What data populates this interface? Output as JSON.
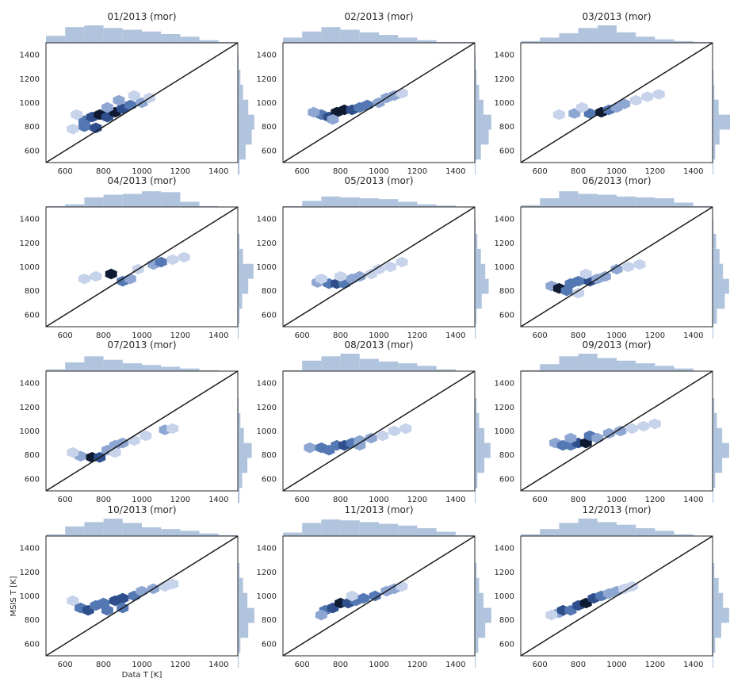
{
  "figure": {
    "xlabel": "Data T [K]",
    "ylabel": "MSIS T [K]"
  },
  "chart_data": {
    "type": "hexbin",
    "x_lim": [
      500,
      1500
    ],
    "y_lim": [
      500,
      1500
    ],
    "x_ticks": [
      600,
      800,
      1000,
      1200,
      1400
    ],
    "y_ticks": [
      600,
      800,
      1000,
      1200,
      1400
    ],
    "reference_line": "y = x",
    "marginal_histograms": "top (x) and right (y)",
    "colors": {
      "hex_scale": [
        "#eef2f9",
        "#c6d3ea",
        "#8ea6d2",
        "#5478b3",
        "#2e4f8c",
        "#0f1a33"
      ],
      "hist": "#b0c4de",
      "line": "#1a1a1a"
    },
    "panels": [
      {
        "title": "01/2013 (mor)",
        "hist_x": [
          0.4,
          0.9,
          1.0,
          0.85,
          0.75,
          0.65,
          0.5,
          0.35,
          0.15,
          0.05
        ],
        "hist_y": [
          0.1,
          0.45,
          0.8,
          0.95,
          0.6,
          0.3,
          0.15,
          0.05
        ],
        "cells": [
          [
            700,
            850,
            3
          ],
          [
            740,
            880,
            4
          ],
          [
            780,
            900,
            5
          ],
          [
            820,
            880,
            4
          ],
          [
            860,
            920,
            5
          ],
          [
            900,
            950,
            4
          ],
          [
            940,
            980,
            3
          ],
          [
            1000,
            1000,
            2
          ],
          [
            700,
            800,
            3
          ],
          [
            760,
            790,
            4
          ],
          [
            820,
            960,
            2
          ],
          [
            880,
            1020,
            2
          ],
          [
            960,
            1060,
            1
          ],
          [
            1040,
            1040,
            1
          ],
          [
            660,
            900,
            1
          ],
          [
            640,
            780,
            1
          ]
        ]
      },
      {
        "title": "02/2013 (mor)",
        "hist_x": [
          0.3,
          0.65,
          0.9,
          0.75,
          0.6,
          0.45,
          0.3,
          0.15,
          0.05,
          0.05
        ],
        "hist_y": [
          0.05,
          0.35,
          0.8,
          0.95,
          0.5,
          0.25,
          0.1,
          0.05
        ],
        "cells": [
          [
            700,
            900,
            3
          ],
          [
            740,
            880,
            4
          ],
          [
            780,
            920,
            5
          ],
          [
            820,
            940,
            5
          ],
          [
            860,
            940,
            4
          ],
          [
            900,
            960,
            3
          ],
          [
            940,
            980,
            3
          ],
          [
            1000,
            1000,
            2
          ],
          [
            1040,
            1040,
            2
          ],
          [
            1080,
            1060,
            2
          ],
          [
            660,
            920,
            2
          ],
          [
            760,
            860,
            2
          ],
          [
            1120,
            1080,
            1
          ]
        ]
      },
      {
        "title": "03/2013 (mor)",
        "hist_x": [
          0.1,
          0.3,
          0.55,
          0.85,
          1.0,
          0.6,
          0.35,
          0.2,
          0.1,
          0.05
        ],
        "hist_y": [
          0.05,
          0.15,
          0.4,
          1.0,
          0.35,
          0.1,
          0.05,
          0.02
        ],
        "cells": [
          [
            700,
            900,
            1
          ],
          [
            780,
            910,
            2
          ],
          [
            860,
            910,
            3
          ],
          [
            920,
            920,
            5
          ],
          [
            960,
            940,
            3
          ],
          [
            1000,
            960,
            2
          ],
          [
            1040,
            990,
            2
          ],
          [
            1100,
            1020,
            1
          ],
          [
            1160,
            1050,
            1
          ],
          [
            1220,
            1070,
            1
          ],
          [
            820,
            960,
            1
          ]
        ]
      },
      {
        "title": "04/2013 (mor)",
        "hist_x": [
          0.05,
          0.15,
          0.55,
          0.7,
          0.75,
          0.9,
          0.85,
          0.3,
          0.05,
          0.02
        ],
        "hist_y": [
          0.05,
          0.1,
          0.25,
          0.6,
          0.9,
          0.3,
          0.1,
          0.02
        ],
        "cells": [
          [
            700,
            900,
            1
          ],
          [
            760,
            920,
            1
          ],
          [
            840,
            940,
            5
          ],
          [
            900,
            880,
            3
          ],
          [
            980,
            980,
            1
          ],
          [
            1060,
            1020,
            2
          ],
          [
            1100,
            1040,
            3
          ],
          [
            1160,
            1060,
            1
          ],
          [
            1220,
            1080,
            1
          ],
          [
            940,
            900,
            2
          ]
        ]
      },
      {
        "title": "05/2013 (mor)",
        "hist_x": [
          0.05,
          0.35,
          0.6,
          0.55,
          0.5,
          0.45,
          0.3,
          0.15,
          0.08,
          0.03
        ],
        "hist_y": [
          0.05,
          0.1,
          0.4,
          0.8,
          0.6,
          0.35,
          0.15,
          0.05
        ],
        "cells": [
          [
            680,
            870,
            2
          ],
          [
            740,
            860,
            3
          ],
          [
            780,
            860,
            4
          ],
          [
            820,
            860,
            3
          ],
          [
            860,
            900,
            2
          ],
          [
            900,
            920,
            2
          ],
          [
            960,
            940,
            1
          ],
          [
            1000,
            980,
            1
          ],
          [
            1060,
            1000,
            1
          ],
          [
            1120,
            1040,
            1
          ],
          [
            800,
            920,
            1
          ],
          [
            700,
            900,
            1
          ]
        ]
      },
      {
        "title": "06/2013 (mor)",
        "hist_x": [
          0.1,
          0.5,
          0.9,
          0.75,
          0.7,
          0.6,
          0.55,
          0.5,
          0.25,
          0.05
        ],
        "hist_y": [
          0.05,
          0.25,
          0.7,
          0.95,
          0.6,
          0.4,
          0.2,
          0.05
        ],
        "cells": [
          [
            660,
            840,
            2
          ],
          [
            700,
            820,
            5
          ],
          [
            740,
            800,
            3
          ],
          [
            760,
            860,
            3
          ],
          [
            800,
            880,
            3
          ],
          [
            860,
            880,
            4
          ],
          [
            900,
            900,
            2
          ],
          [
            940,
            920,
            2
          ],
          [
            1000,
            980,
            2
          ],
          [
            1060,
            1000,
            1
          ],
          [
            1120,
            1020,
            1
          ],
          [
            840,
            940,
            1
          ],
          [
            800,
            780,
            1
          ]
        ]
      },
      {
        "title": "07/2013 (mor)",
        "hist_x": [
          0.1,
          0.5,
          0.85,
          0.65,
          0.45,
          0.35,
          0.25,
          0.15,
          0.05,
          0.02
        ],
        "hist_y": [
          0.1,
          0.25,
          0.55,
          0.8,
          0.35,
          0.15,
          0.05,
          0.02
        ],
        "cells": [
          [
            680,
            790,
            2
          ],
          [
            740,
            780,
            5
          ],
          [
            780,
            780,
            4
          ],
          [
            820,
            840,
            2
          ],
          [
            860,
            880,
            2
          ],
          [
            900,
            900,
            2
          ],
          [
            960,
            920,
            1
          ],
          [
            1020,
            960,
            1
          ],
          [
            1120,
            1010,
            2
          ],
          [
            1160,
            1020,
            1
          ],
          [
            640,
            820,
            1
          ],
          [
            860,
            820,
            1
          ]
        ]
      },
      {
        "title": "08/2013 (mor)",
        "hist_x": [
          0.05,
          0.6,
          0.85,
          1.0,
          0.7,
          0.55,
          0.45,
          0.3,
          0.1,
          0.02
        ],
        "hist_y": [
          0.05,
          0.15,
          0.55,
          0.9,
          0.55,
          0.25,
          0.1,
          0.02
        ],
        "cells": [
          [
            640,
            860,
            2
          ],
          [
            700,
            860,
            3
          ],
          [
            740,
            840,
            3
          ],
          [
            780,
            880,
            3
          ],
          [
            820,
            880,
            4
          ],
          [
            860,
            900,
            3
          ],
          [
            900,
            920,
            2
          ],
          [
            960,
            940,
            2
          ],
          [
            1020,
            960,
            1
          ],
          [
            1080,
            1000,
            1
          ],
          [
            1140,
            1020,
            1
          ],
          [
            900,
            880,
            2
          ]
        ]
      },
      {
        "title": "09/2013 (mor)",
        "hist_x": [
          0.05,
          0.4,
          0.85,
          1.0,
          0.75,
          0.6,
          0.45,
          0.3,
          0.15,
          0.02
        ],
        "hist_y": [
          0.05,
          0.15,
          0.55,
          0.95,
          0.55,
          0.25,
          0.1,
          0.02
        ],
        "cells": [
          [
            680,
            900,
            2
          ],
          [
            720,
            880,
            3
          ],
          [
            760,
            880,
            3
          ],
          [
            800,
            900,
            4
          ],
          [
            840,
            900,
            5
          ],
          [
            860,
            960,
            3
          ],
          [
            900,
            940,
            2
          ],
          [
            960,
            980,
            2
          ],
          [
            1020,
            1000,
            2
          ],
          [
            1080,
            1020,
            1
          ],
          [
            1140,
            1040,
            1
          ],
          [
            1200,
            1060,
            1
          ],
          [
            760,
            940,
            2
          ]
        ]
      },
      {
        "title": "10/2013 (mor)",
        "hist_x": [
          0.1,
          0.55,
          0.8,
          1.0,
          0.75,
          0.5,
          0.4,
          0.3,
          0.15,
          0.05
        ],
        "hist_y": [
          0.05,
          0.15,
          0.6,
          0.95,
          0.55,
          0.3,
          0.1,
          0.02
        ],
        "cells": [
          [
            680,
            900,
            3
          ],
          [
            720,
            880,
            4
          ],
          [
            760,
            920,
            3
          ],
          [
            800,
            940,
            3
          ],
          [
            860,
            960,
            4
          ],
          [
            900,
            980,
            4
          ],
          [
            960,
            1000,
            3
          ],
          [
            1000,
            1040,
            2
          ],
          [
            1060,
            1060,
            2
          ],
          [
            1120,
            1080,
            1
          ],
          [
            820,
            880,
            3
          ],
          [
            900,
            900,
            3
          ],
          [
            1160,
            1100,
            1
          ],
          [
            640,
            960,
            1
          ]
        ]
      },
      {
        "title": "11/2013 (mor)",
        "hist_x": [
          0.2,
          0.75,
          0.95,
          0.9,
          0.8,
          0.7,
          0.6,
          0.45,
          0.25,
          0.05
        ],
        "hist_y": [
          0.05,
          0.2,
          0.6,
          0.95,
          0.5,
          0.25,
          0.1,
          0.02
        ],
        "cells": [
          [
            720,
            880,
            3
          ],
          [
            760,
            900,
            4
          ],
          [
            800,
            940,
            5
          ],
          [
            840,
            940,
            4
          ],
          [
            880,
            960,
            3
          ],
          [
            920,
            980,
            3
          ],
          [
            980,
            1000,
            3
          ],
          [
            1040,
            1040,
            2
          ],
          [
            1080,
            1060,
            2
          ],
          [
            1120,
            1080,
            1
          ],
          [
            700,
            840,
            2
          ],
          [
            860,
            1000,
            1
          ]
        ]
      },
      {
        "title": "12/2013 (mor)",
        "hist_x": [
          0.1,
          0.4,
          0.75,
          1.0,
          0.8,
          0.65,
          0.45,
          0.3,
          0.1,
          0.03
        ],
        "hist_y": [
          0.05,
          0.15,
          0.5,
          0.95,
          0.6,
          0.35,
          0.1,
          0.02
        ],
        "cells": [
          [
            700,
            860,
            2
          ],
          [
            720,
            880,
            4
          ],
          [
            760,
            880,
            3
          ],
          [
            800,
            920,
            4
          ],
          [
            840,
            940,
            5
          ],
          [
            880,
            980,
            4
          ],
          [
            920,
            1000,
            3
          ],
          [
            960,
            1020,
            2
          ],
          [
            1000,
            1040,
            2
          ],
          [
            1040,
            1060,
            1
          ],
          [
            1080,
            1080,
            1
          ],
          [
            660,
            840,
            1
          ]
        ]
      }
    ]
  }
}
